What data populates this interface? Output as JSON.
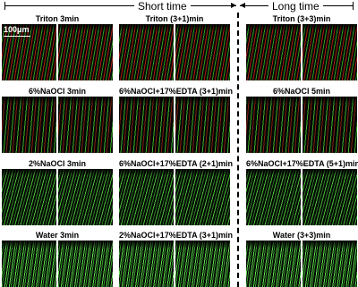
{
  "header": {
    "short_time": "Short time",
    "long_time": "Long time"
  },
  "scale_label": "100μm",
  "panels": [
    [
      "Triton 3min",
      "Triton (3+1)min",
      "Triton (3+3)min"
    ],
    [
      "6%NaOCl 3min",
      "6%NaOCl+17%EDTA (3+1)min",
      "6%NaOCl 5min"
    ],
    [
      "2%NaOCl 3min",
      "6%NaOCl+17%EDTA (2+1)min",
      "6%NaOCl+17%EDTA (5+1)min"
    ],
    [
      "Water 3min",
      "2%NaOCl+17%EDTA (3+1)min",
      "Water (3+3)min"
    ]
  ]
}
